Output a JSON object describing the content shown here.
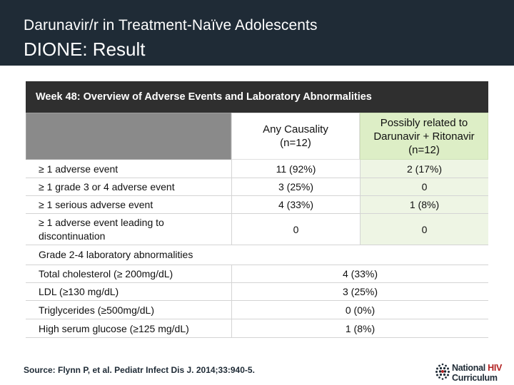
{
  "header": {
    "title": "Darunavir/r in Treatment-Naïve Adolescents",
    "subtitle": "DIONE: Result"
  },
  "table": {
    "banner": "Week 48: Overview of Adverse Events and Laboratory Abnormalities",
    "col_any_line1": "Any Causality",
    "col_any_line2": "(n=12)",
    "col_rel_line1": "Possibly related to",
    "col_rel_line2": "Darunavir + Ritonavir",
    "col_rel_line3": "(n=12)",
    "ae_rows": [
      {
        "label": "≥ 1 adverse event",
        "any": "11 (92%)",
        "related": "2 (17%)"
      },
      {
        "label": "≥ 1 grade 3 or 4 adverse event",
        "any": "3 (25%)",
        "related": "0"
      },
      {
        "label": "≥ 1 serious adverse event",
        "any": "4 (33%)",
        "related": "1 (8%)"
      },
      {
        "label_line1": "≥ 1 adverse event leading to",
        "label_line2": "discontinuation",
        "any": "0",
        "related": "0"
      }
    ],
    "lab_section": "Grade 2-4 laboratory abnormalities",
    "lab_rows": [
      {
        "label": "Total cholesterol (≥ 200mg/dL)",
        "value": "4 (33%)"
      },
      {
        "label": "LDL (≥130 mg/dL)",
        "value": "3 (25%)"
      },
      {
        "label": "Triglycerides (≥500mg/dL)",
        "value": "0 (0%)"
      },
      {
        "label": "High serum glucose (≥125 mg/dL)",
        "value": "1 (8%)"
      }
    ]
  },
  "footer": {
    "source": "Source: Flynn P, et al. Pediatr Infect Dis J. 2014;33:940-5.",
    "logo_word1": "National",
    "logo_word2": "HIV",
    "logo_word3": "Curriculum"
  },
  "colors": {
    "header_bg": "#1f2b36",
    "banner_bg": "#2f2f2f",
    "related_col_bg": "#ddeec6",
    "logo_accent": "#b22222"
  },
  "icons": {
    "logo": "dot-globe-icon"
  }
}
